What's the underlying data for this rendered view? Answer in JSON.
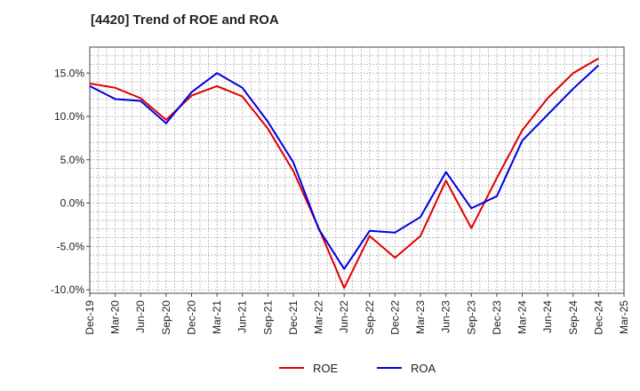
{
  "chart_data": {
    "type": "line",
    "title": "[4420]  Trend of ROE and ROA",
    "xlabel": "",
    "ylabel": "",
    "x_ticks": [
      "Dec-19",
      "Mar-20",
      "Jun-20",
      "Sep-20",
      "Dec-20",
      "Mar-21",
      "Jun-21",
      "Sep-21",
      "Dec-21",
      "Mar-22",
      "Jun-22",
      "Sep-22",
      "Dec-22",
      "Mar-23",
      "Jun-23",
      "Sep-23",
      "Dec-23",
      "Mar-24",
      "Jun-24",
      "Sep-24",
      "Dec-24",
      "Mar-25"
    ],
    "y_ticks": [
      -10,
      -5,
      0,
      5,
      10,
      15
    ],
    "y_tick_labels": [
      "-10.0%",
      "-5.0%",
      "0.0%",
      "5.0%",
      "10.0%",
      "15.0%"
    ],
    "ylim": [
      -10.4,
      18.0
    ],
    "grid": true,
    "legend_position": "bottom-center",
    "series": [
      {
        "name": "ROE",
        "color": "#e00000",
        "x": [
          "Dec-19",
          "Mar-20",
          "Jun-20",
          "Sep-20",
          "Dec-20",
          "Mar-21",
          "Jun-21",
          "Sep-21",
          "Dec-21",
          "Mar-22",
          "Jun-22",
          "Sep-22",
          "Dec-22",
          "Mar-23",
          "Jun-23",
          "Sep-23",
          "Dec-23",
          "Mar-24",
          "Jun-24",
          "Sep-24",
          "Dec-24"
        ],
        "values": [
          13.8,
          13.3,
          12.1,
          9.6,
          12.4,
          13.5,
          12.3,
          8.6,
          3.7,
          -2.9,
          -9.8,
          -3.8,
          -6.3,
          -3.8,
          2.6,
          -2.9,
          2.9,
          8.4,
          12.1,
          15.0,
          16.7
        ]
      },
      {
        "name": "ROA",
        "color": "#0000e0",
        "x": [
          "Dec-19",
          "Mar-20",
          "Jun-20",
          "Sep-20",
          "Dec-20",
          "Mar-21",
          "Jun-21",
          "Sep-21",
          "Dec-21",
          "Mar-22",
          "Jun-22",
          "Sep-22",
          "Dec-22",
          "Mar-23",
          "Jun-23",
          "Sep-23",
          "Dec-23",
          "Mar-24",
          "Jun-24",
          "Sep-24",
          "Dec-24"
        ],
        "values": [
          13.5,
          12.0,
          11.8,
          9.2,
          12.8,
          15.0,
          13.3,
          9.4,
          4.7,
          -3.0,
          -7.6,
          -3.2,
          -3.4,
          -1.6,
          3.6,
          -0.6,
          0.8,
          7.2,
          10.2,
          13.2,
          15.9
        ]
      }
    ]
  }
}
